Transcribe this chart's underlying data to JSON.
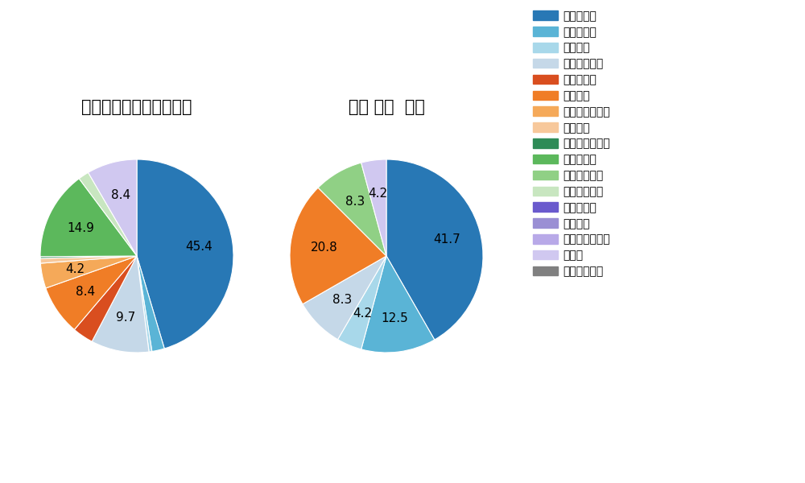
{
  "pitch_types": [
    "ストレート",
    "ツーシーム",
    "シュート",
    "カットボール",
    "スプリット",
    "フォーク",
    "チェンジアップ",
    "シンカー",
    "高速スライダー",
    "スライダー",
    "縦スライダー",
    "パワーカーブ",
    "スクリュー",
    "ナックル",
    "ナックルカーブ",
    "カーブ",
    "スローカーブ"
  ],
  "colors": [
    "#2878b5",
    "#5ab4d6",
    "#a8d8ea",
    "#c5d8e8",
    "#d94e1f",
    "#f07d26",
    "#f5a959",
    "#f7c89b",
    "#2e8b57",
    "#5cb85c",
    "#90d085",
    "#c8e6c0",
    "#6a5acd",
    "#9a8fd4",
    "#b8a9e8",
    "#d0c8f0",
    "#808080"
  ],
  "left_title": "セ・リーグ全プレイヤー",
  "right_title": "石橋 康太  選手",
  "left_slices": {
    "ストレート": 45.4,
    "ツーシーム": 2.1,
    "シュート": 0.5,
    "カットボール": 9.7,
    "スプリット": 3.5,
    "フォーク": 8.4,
    "チェンジアップ": 4.2,
    "シンカー": 0.8,
    "高速スライダー": 0.3,
    "スライダー": 14.9,
    "縦スライダー": 0.0,
    "パワーカーブ": 1.8,
    "スクリュー": 0.0,
    "ナックル": 0.0,
    "ナックルカーブ": 0.0,
    "カーブ": 8.4,
    "スローカーブ": 0.0
  },
  "right_slices": {
    "ストレート": 41.7,
    "ツーシーム": 12.5,
    "シュート": 4.2,
    "カットボール": 8.3,
    "スプリット": 0.0,
    "フォーク": 20.8,
    "チェンジアップ": 0.0,
    "シンカー": 0.0,
    "高速スライダー": 0.0,
    "スライダー": 0.0,
    "縦スライダー": 8.3,
    "パワーカーブ": 0.0,
    "スクリュー": 0.0,
    "ナックル": 0.0,
    "ナックルカーブ": 0.0,
    "カーブ": 4.2,
    "スローカーブ": 0.0
  },
  "background_color": "#ffffff",
  "label_threshold": 3.5,
  "title_fontsize": 15,
  "label_fontsize": 11
}
